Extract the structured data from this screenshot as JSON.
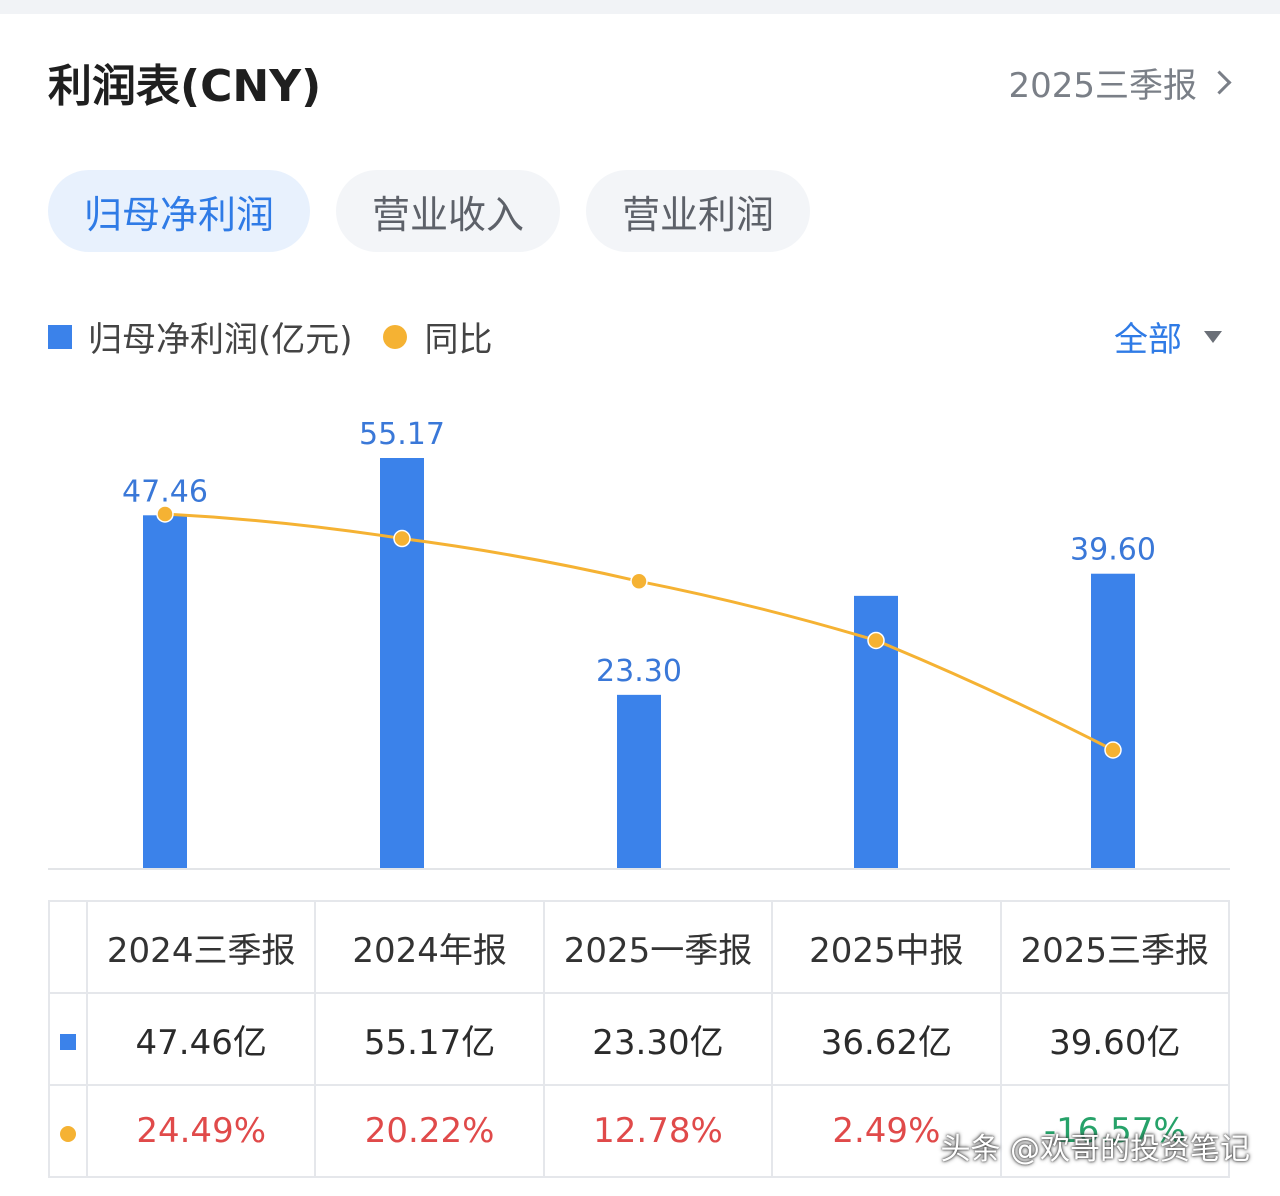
{
  "header": {
    "title": "利润表(CNY)",
    "period": "2025三季报"
  },
  "tabs": [
    "归母净利润",
    "营业收入",
    "营业利润"
  ],
  "legend": {
    "bar": "归母净利润(亿元)",
    "line": "同比"
  },
  "filter": "全部",
  "colors": {
    "bar": "#3b82ea",
    "line": "#f5b233",
    "label": "#3a78d8",
    "pos": "#e04a4a",
    "neg": "#26a269"
  },
  "chart_data": {
    "type": "bar",
    "categories": [
      "2024三季报",
      "2024年报",
      "2025一季报",
      "2025中报",
      "2025三季报"
    ],
    "series": [
      {
        "name": "归母净利润(亿元)",
        "type": "bar",
        "values": [
          47.46,
          55.17,
          23.3,
          36.62,
          39.6
        ]
      },
      {
        "name": "同比",
        "type": "line",
        "values": [
          24.49,
          20.22,
          12.78,
          2.49,
          -16.57
        ]
      }
    ],
    "bar_labels": [
      "47.46",
      "55.17",
      "23.30",
      "",
      "39.60"
    ],
    "ylim_bar": [
      0,
      55.17
    ],
    "ylim_line": [
      -16.57,
      24.49
    ]
  },
  "table": {
    "headers": [
      "2024三季报",
      "2024年报",
      "2025一季报",
      "2025中报",
      "2025三季报"
    ],
    "values": [
      "47.46亿",
      "55.17亿",
      "23.30亿",
      "36.62亿",
      "39.60亿"
    ],
    "yoy": [
      "24.49%",
      "20.22%",
      "12.78%",
      "2.49%",
      "-16.57%"
    ]
  },
  "watermark": "头条 @欢哥的投资笔记"
}
